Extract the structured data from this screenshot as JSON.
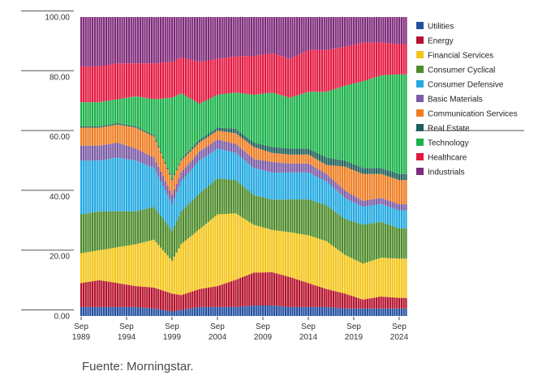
{
  "chart_data": {
    "type": "area",
    "stacked": true,
    "normalized_percent": true,
    "ylim": [
      0,
      100
    ],
    "y_ticks": [
      "100.00",
      "80.00",
      "60.00",
      "40.00",
      "20.00",
      "0.00"
    ],
    "x_ticks": [
      {
        "year": 1989,
        "month": "Sep",
        "label": [
          "Sep",
          "1989"
        ]
      },
      {
        "year": 1994,
        "month": "Sep",
        "label": [
          "Sep",
          "1994"
        ]
      },
      {
        "year": 1999,
        "month": "Sep",
        "label": [
          "Sep",
          "1999"
        ]
      },
      {
        "year": 2004,
        "month": "Sep",
        "label": [
          "Sep",
          "2004"
        ]
      },
      {
        "year": 2009,
        "month": "Sep",
        "label": [
          "Sep",
          "2009"
        ]
      },
      {
        "year": 2014,
        "month": "Sep",
        "label": [
          "Sep",
          "2014"
        ]
      },
      {
        "year": 2019,
        "month": "Sep",
        "label": [
          "Sep",
          "2019"
        ]
      },
      {
        "year": 2024,
        "month": "Sep",
        "label": [
          "Sep",
          "2024"
        ]
      }
    ],
    "x_range": [
      1989,
      2024.9
    ],
    "legend_position": "right",
    "grid": false,
    "x": [
      1989,
      1991,
      1993,
      1995,
      1997,
      1999,
      2000,
      2002,
      2004,
      2006,
      2008,
      2010,
      2012,
      2014,
      2016,
      2018,
      2020,
      2022,
      2024
    ],
    "series": [
      {
        "name": "Utilities",
        "color": "#2350a0",
        "values": [
          3,
          3,
          3,
          3,
          2.5,
          1.5,
          2,
          3,
          3,
          3,
          3.5,
          3.5,
          3,
          3,
          3,
          2.5,
          2.5,
          2.5,
          2.5
        ]
      },
      {
        "name": "Energy",
        "color": "#b5122d",
        "values": [
          8,
          9,
          8,
          7,
          7,
          6,
          5,
          6,
          7,
          9,
          11,
          11,
          10,
          8,
          6,
          5,
          3,
          4,
          3.5
        ]
      },
      {
        "name": "Financial Services",
        "color": "#f4c51a",
        "values": [
          10,
          10,
          12,
          14,
          16,
          11,
          17,
          20,
          24,
          22,
          16,
          14,
          15,
          16,
          16,
          13,
          12,
          13,
          13
        ]
      },
      {
        "name": "Consumer Cyclical",
        "color": "#4d8b2a",
        "values": [
          13,
          13,
          12,
          11,
          11,
          10,
          11,
          12,
          12,
          11,
          10,
          10,
          11,
          12,
          12,
          12,
          13,
          12,
          10
        ]
      },
      {
        "name": "Consumer Defensive",
        "color": "#22a9e1",
        "values": [
          18,
          17,
          18,
          17,
          13,
          9,
          10,
          11,
          10,
          9,
          9,
          9,
          9,
          9,
          8,
          7,
          6,
          6,
          6
        ]
      },
      {
        "name": "Basic Materials",
        "color": "#7b5aa6",
        "values": [
          5,
          5,
          5,
          4,
          3.5,
          3,
          3,
          3,
          3,
          3,
          3,
          3.5,
          3,
          3,
          2.5,
          2.5,
          2,
          2,
          2
        ]
      },
      {
        "name": "Communication Services",
        "color": "#ef7d22",
        "values": [
          6,
          6,
          6,
          7,
          7,
          5,
          4,
          3,
          3,
          3.5,
          4,
          3,
          3,
          3,
          3,
          8,
          9,
          8,
          8
        ]
      },
      {
        "name": "Real Estate",
        "color": "#1e5f5a",
        "values": [
          0.5,
          0.5,
          0.5,
          0.5,
          0.5,
          0.5,
          0.5,
          1,
          1,
          1.5,
          1.5,
          2,
          2,
          2,
          2.5,
          2,
          2,
          2,
          2
        ]
      },
      {
        "name": "Technology",
        "color": "#1bb24b",
        "values": [
          8,
          8,
          8,
          10,
          12,
          27,
          22,
          12,
          11,
          12,
          16,
          18,
          17,
          19,
          22,
          25,
          29,
          31,
          33
        ]
      },
      {
        "name": "Healthcare",
        "color": "#e5173f",
        "values": [
          12,
          12,
          12,
          11,
          12,
          12,
          12,
          14,
          12,
          12,
          13,
          13,
          13,
          14,
          14,
          13,
          13,
          11,
          10
        ]
      },
      {
        "name": "Industrials",
        "color": "#7e2a7a",
        "values": [
          16.5,
          16.5,
          15.5,
          15.5,
          15.5,
          15,
          13.5,
          15,
          14,
          13,
          13,
          12,
          14,
          11,
          11,
          10,
          8.5,
          8.5,
          9
        ]
      }
    ]
  },
  "footer": {
    "source": "Fuente: Morningstar."
  }
}
